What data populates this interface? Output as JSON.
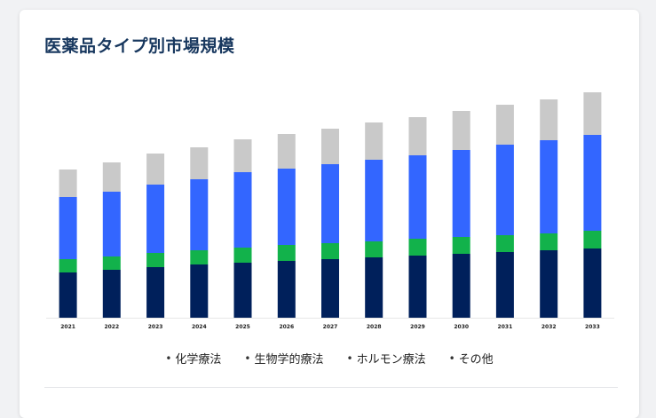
{
  "card": {
    "title": "医薬品タイプ別市場規模"
  },
  "legend": {
    "bullet": "•",
    "items": [
      "化学療法",
      "生物学的療法",
      "ホルモン療法",
      "その他"
    ]
  },
  "colors": {
    "化学療法": "#00205b",
    "生物学的療法": "#12b24b",
    "ホルモン療法": "#3366ff",
    "その他": "#c9c9c9"
  },
  "chart_data": {
    "type": "bar",
    "stacked": true,
    "categories": [
      "2021",
      "2022",
      "2023",
      "2024",
      "2025",
      "2026",
      "2027",
      "2028",
      "2029",
      "2030",
      "2031",
      "2032",
      "2033"
    ],
    "series": [
      {
        "name": "化学療法",
        "values": [
          51,
          54,
          57,
          60,
          62,
          64,
          66,
          68,
          70,
          72,
          74,
          76,
          78
        ]
      },
      {
        "name": "生物学的療法",
        "values": [
          15,
          15,
          16,
          16,
          17,
          18,
          18,
          18,
          19,
          19,
          19,
          19,
          20
        ]
      },
      {
        "name": "ホルモン療法",
        "values": [
          70,
          73,
          77,
          80,
          85,
          86,
          89,
          92,
          94,
          98,
          102,
          105,
          108
        ]
      },
      {
        "name": "その他",
        "values": [
          31,
          33,
          35,
          36,
          37,
          39,
          40,
          42,
          43,
          44,
          45,
          46,
          48
        ]
      }
    ],
    "ylim": [
      0,
      270
    ],
    "grid": false,
    "legend_position": "bottom"
  }
}
